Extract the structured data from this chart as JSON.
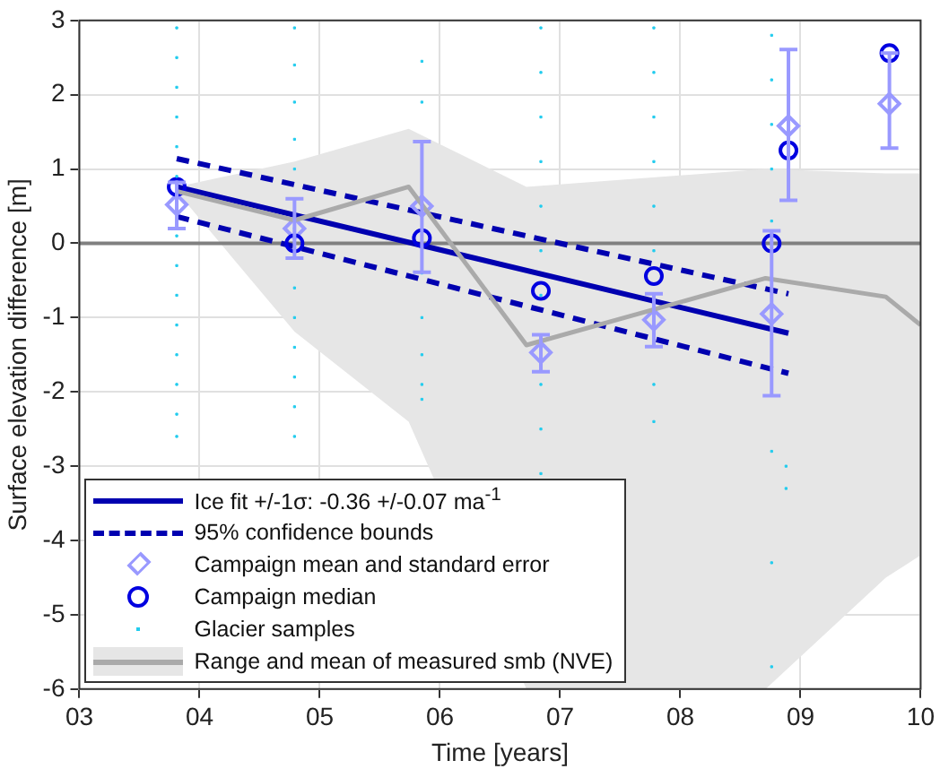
{
  "chart_data": {
    "type": "scatter",
    "xlabel": "Time [years]",
    "ylabel": "Surface elevation difference [m]",
    "xlim": [
      2003,
      2010
    ],
    "ylim": [
      -6,
      3
    ],
    "xticks": [
      {
        "value": 2003,
        "label": "03"
      },
      {
        "value": 2004,
        "label": "04"
      },
      {
        "value": 2005,
        "label": "05"
      },
      {
        "value": 2006,
        "label": "06"
      },
      {
        "value": 2007,
        "label": "07"
      },
      {
        "value": 2008,
        "label": "08"
      },
      {
        "value": 2009,
        "label": "09"
      },
      {
        "value": 2010,
        "label": "10"
      }
    ],
    "yticks": [
      -6,
      -5,
      -4,
      -3,
      -2,
      -1,
      0,
      1,
      2,
      3
    ],
    "grid": true,
    "legend": "bottom left",
    "ref_lines": [
      {
        "axis": "y",
        "value": 0,
        "color": "#808080"
      }
    ],
    "series": [
      {
        "name": "Ice fit +/-1σ: -0.36  +/-0.07 ma$^{-1}$",
        "type": "line",
        "color": "#0000b0",
        "marker": "none",
        "line_style": "solid",
        "x": [
          2003.81,
          2008.9
        ],
        "values": [
          0.76,
          -1.21
        ]
      },
      {
        "name": "95% confidence bounds",
        "type": "line",
        "color": "#0000b0",
        "marker": "none",
        "line_style": "dashed",
        "x": [
          2003.81,
          2008.9
        ],
        "values": [
          1.14,
          -0.68
        ]
      },
      {
        "type": "line",
        "color": "#0000b0",
        "marker": "none",
        "line_style": "dashed",
        "x": [
          2003.81,
          2008.9
        ],
        "values": [
          0.36,
          -1.75
        ]
      },
      {
        "name": "Campaign mean and standard error",
        "type": "scatter",
        "color": "#9999ff",
        "marker": "diamond",
        "x": [
          2003.81,
          2004.79,
          2005.85,
          2006.84,
          2007.78,
          2008.76,
          2008.9,
          2009.74
        ],
        "values": [
          0.52,
          0.2,
          0.5,
          -1.47,
          -1.03,
          -0.95,
          1.58,
          1.88
        ],
        "errors": [
          [
            0.2,
            0.82
          ],
          [
            -0.2,
            0.6
          ],
          [
            -0.39,
            1.37
          ],
          [
            -1.73,
            -1.23
          ],
          [
            -1.39,
            -0.68
          ],
          [
            -2.05,
            0.17
          ],
          [
            0.58,
            2.61
          ],
          [
            1.28,
            2.56
          ]
        ]
      },
      {
        "name": "Campaign median",
        "type": "scatter",
        "color": "#0000e0",
        "marker": "circle",
        "x": [
          2003.81,
          2004.79,
          2005.85,
          2006.84,
          2007.78,
          2008.76,
          2008.9,
          2009.74
        ],
        "values": [
          0.76,
          0,
          0.07,
          -0.64,
          -0.44,
          0,
          1.25,
          2.56
        ]
      },
      {
        "name": "Glacier samples",
        "type": "scatter",
        "color": "#22ccee",
        "marker": "square",
        "x": [
          2003.81,
          2003.81,
          2003.81,
          2003.81,
          2003.81,
          2003.81,
          2003.81,
          2003.81,
          2003.81,
          2003.81,
          2003.81,
          2003.81,
          2003.81,
          2003.81,
          2004.79,
          2004.79,
          2004.79,
          2004.79,
          2004.79,
          2004.79,
          2004.79,
          2004.79,
          2004.79,
          2004.79,
          2004.79,
          2004.79,
          2005.85,
          2005.85,
          2005.85,
          2005.85,
          2005.85,
          2005.85,
          2005.85,
          2006.84,
          2006.84,
          2006.84,
          2006.84,
          2006.84,
          2006.84,
          2006.84,
          2006.84,
          2006.84,
          2006.84,
          2007.78,
          2007.78,
          2007.78,
          2007.78,
          2007.78,
          2007.78,
          2007.78,
          2007.78,
          2008.76,
          2008.76,
          2008.76,
          2008.76,
          2008.76,
          2008.76,
          2008.76,
          2008.76,
          2008.88,
          2008.88
        ],
        "values": [
          2.9,
          2.5,
          2.1,
          1.7,
          1.3,
          0.9,
          0.1,
          -0.3,
          -0.7,
          -1.1,
          -1.5,
          -1.9,
          -2.3,
          -2.6,
          2.9,
          2.4,
          1.9,
          1.4,
          1.0,
          0.2,
          -0.6,
          -1.0,
          -1.4,
          -1.8,
          -2.2,
          -2.6,
          2.45,
          1.9,
          -0.4,
          -1.0,
          -1.5,
          -1.9,
          -2.1,
          2.9,
          2.3,
          1.7,
          1.1,
          0.5,
          -0.1,
          -0.7,
          -1.9,
          -2.5,
          -3.1,
          2.9,
          2.3,
          1.7,
          1.1,
          0.5,
          -0.1,
          -1.9,
          -2.4,
          2.8,
          2.2,
          1.6,
          1.0,
          0.3,
          -2.8,
          -4.3,
          -5.7,
          -3.0,
          -3.3
        ]
      },
      {
        "name": "Range and mean of measured smb (NVE)",
        "type": "line",
        "color": "#aaaaaa",
        "marker": "none",
        "line_style": "solid",
        "x": [
          2003.81,
          2004.79,
          2005.74,
          2006.72,
          2008.71,
          2009.71,
          2010
        ],
        "values": [
          0.7,
          0.31,
          0.76,
          -1.37,
          -0.47,
          -0.72,
          -1.1
        ],
        "lower": [
          0.7,
          -1.19,
          -2.4,
          -6,
          -6,
          -4.5,
          -4.2
        ],
        "upper": [
          0.76,
          1.1,
          1.54,
          0.76,
          1.0,
          0.94,
          0.94
        ]
      }
    ]
  }
}
